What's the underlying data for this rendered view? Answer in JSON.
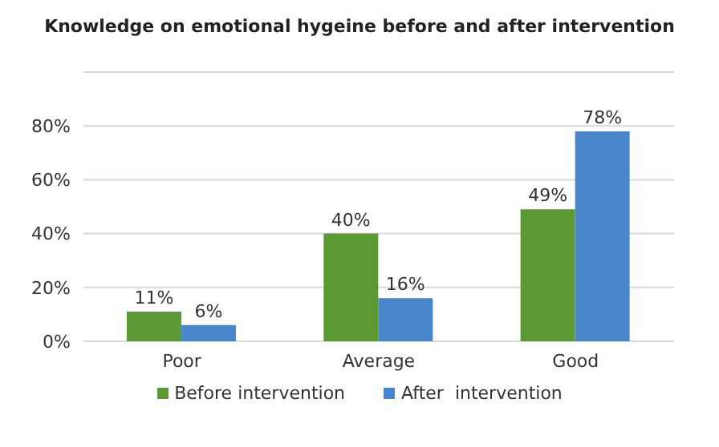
{
  "chart_data": {
    "type": "bar",
    "title": "Knowledge on emotional hygeine before and after intervention",
    "categories": [
      "Poor",
      "Average",
      "Good"
    ],
    "series": [
      {
        "name": "Before intervention",
        "color": "#5b9a32",
        "values": [
          11,
          40,
          49
        ],
        "value_labels": [
          "11%",
          "40%",
          "49%"
        ]
      },
      {
        "name": "After  intervention",
        "color": "#4a86cc",
        "values": [
          6,
          16,
          78
        ],
        "value_labels": [
          "6%",
          "16%",
          "78%"
        ]
      }
    ],
    "ylim": [
      0,
      100
    ],
    "yticks": [
      {
        "value": 0,
        "label": "0%"
      },
      {
        "value": 20,
        "label": "20%"
      },
      {
        "value": 40,
        "label": "40%"
      },
      {
        "value": 60,
        "label": "60%"
      },
      {
        "value": 80,
        "label": "80%"
      },
      {
        "value": 100,
        "label": null
      }
    ],
    "grid": "y",
    "legend": "bottom"
  }
}
